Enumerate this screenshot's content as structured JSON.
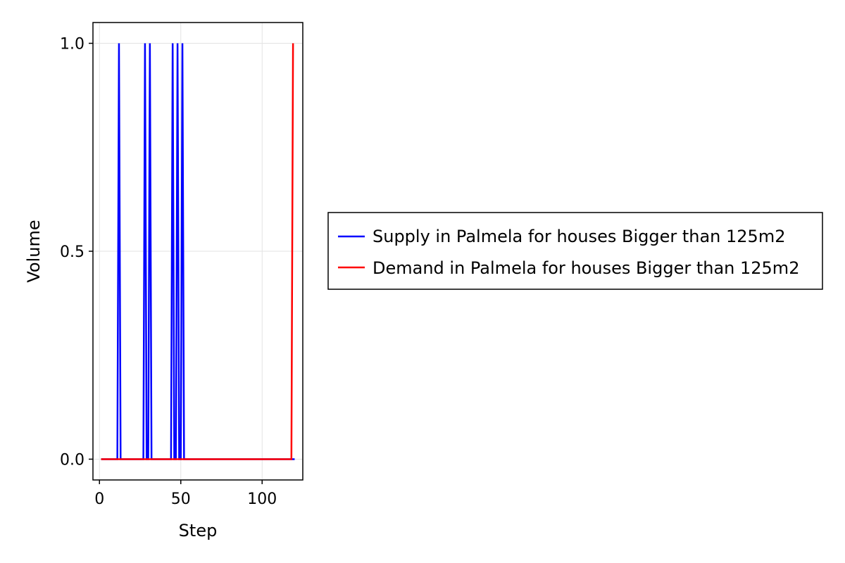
{
  "chart_data": {
    "type": "line",
    "title": "",
    "xlabel": "Step",
    "ylabel": "Volume",
    "xlim": [
      -4,
      125
    ],
    "ylim": [
      -0.05,
      1.05
    ],
    "xticks": [
      0,
      50,
      100
    ],
    "yticks": [
      0.0,
      0.5,
      1.0
    ],
    "xtick_labels": [
      "0",
      "50",
      "100"
    ],
    "ytick_labels": [
      "0.0",
      "0.5",
      "1.0"
    ],
    "grid": true,
    "legend_position": "right",
    "series": [
      {
        "name": "Supply in Palmela for houses Bigger than 125m2",
        "color": "#0000ff",
        "x": [
          1,
          11,
          12,
          13,
          27,
          28,
          29,
          30,
          31,
          32,
          44,
          45,
          46,
          47,
          48,
          49,
          50,
          51,
          52,
          119,
          120
        ],
        "y": [
          0,
          0,
          1,
          0,
          0,
          1,
          0,
          0,
          1,
          0,
          0,
          1,
          0,
          0,
          1,
          0,
          0,
          1,
          0,
          0,
          0
        ]
      },
      {
        "name": "Demand in Palmela for houses Bigger than 125m2",
        "color": "#ff0000",
        "x": [
          1,
          117,
          118,
          119
        ],
        "y": [
          0,
          0,
          0,
          1
        ]
      }
    ]
  }
}
